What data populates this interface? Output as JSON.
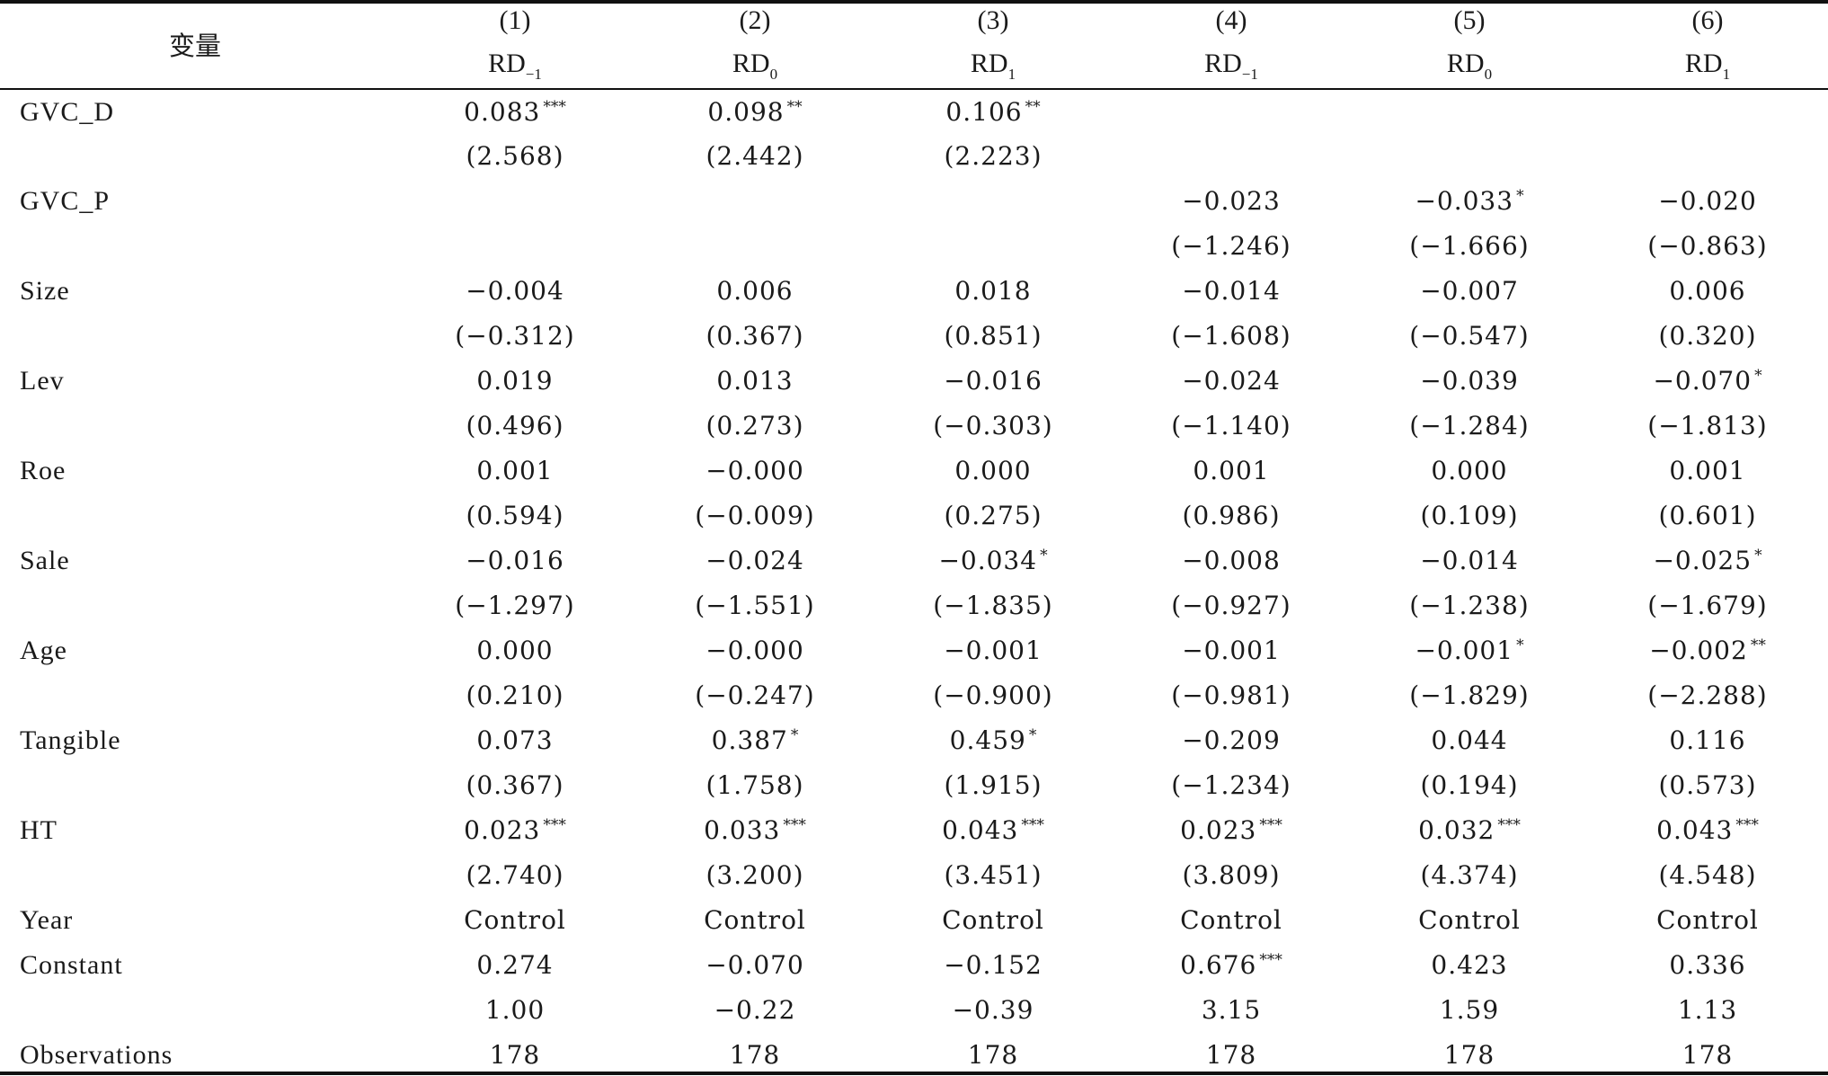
{
  "table": {
    "var_header": "变量",
    "columns": [
      {
        "num": "(1)",
        "dep": "RD",
        "sub": "−1"
      },
      {
        "num": "(2)",
        "dep": "RD",
        "sub": "0"
      },
      {
        "num": "(3)",
        "dep": "RD",
        "sub": "1"
      },
      {
        "num": "(4)",
        "dep": "RD",
        "sub": "−1"
      },
      {
        "num": "(5)",
        "dep": "RD",
        "sub": "0"
      },
      {
        "num": "(6)",
        "dep": "RD",
        "sub": "1"
      }
    ],
    "rows": [
      {
        "label": "GVC_D",
        "coef": [
          {
            "v": "0.083",
            "s": "***"
          },
          {
            "v": "0.098",
            "s": "**"
          },
          {
            "v": "0.106",
            "s": "**"
          },
          null,
          null,
          null
        ],
        "t": [
          "(2.568)",
          "(2.442)",
          "(2.223)",
          null,
          null,
          null
        ]
      },
      {
        "label": "GVC_P",
        "coef": [
          null,
          null,
          null,
          {
            "v": "−0.023",
            "s": ""
          },
          {
            "v": "−0.033",
            "s": "*"
          },
          {
            "v": "−0.020",
            "s": ""
          }
        ],
        "t": [
          null,
          null,
          null,
          "(−1.246)",
          "(−1.666)",
          "(−0.863)"
        ]
      },
      {
        "label": "Size",
        "coef": [
          {
            "v": "−0.004",
            "s": ""
          },
          {
            "v": "0.006",
            "s": ""
          },
          {
            "v": "0.018",
            "s": ""
          },
          {
            "v": "−0.014",
            "s": ""
          },
          {
            "v": "−0.007",
            "s": ""
          },
          {
            "v": "0.006",
            "s": ""
          }
        ],
        "t": [
          "(−0.312)",
          "(0.367)",
          "(0.851)",
          "(−1.608)",
          "(−0.547)",
          "(0.320)"
        ]
      },
      {
        "label": "Lev",
        "coef": [
          {
            "v": "0.019",
            "s": ""
          },
          {
            "v": "0.013",
            "s": ""
          },
          {
            "v": "−0.016",
            "s": ""
          },
          {
            "v": "−0.024",
            "s": ""
          },
          {
            "v": "−0.039",
            "s": ""
          },
          {
            "v": "−0.070",
            "s": "*"
          }
        ],
        "t": [
          "(0.496)",
          "(0.273)",
          "(−0.303)",
          "(−1.140)",
          "(−1.284)",
          "(−1.813)"
        ]
      },
      {
        "label": "Roe",
        "coef": [
          {
            "v": "0.001",
            "s": ""
          },
          {
            "v": "−0.000",
            "s": ""
          },
          {
            "v": "0.000",
            "s": ""
          },
          {
            "v": "0.001",
            "s": ""
          },
          {
            "v": "0.000",
            "s": ""
          },
          {
            "v": "0.001",
            "s": ""
          }
        ],
        "t": [
          "(0.594)",
          "(−0.009)",
          "(0.275)",
          "(0.986)",
          "(0.109)",
          "(0.601)"
        ]
      },
      {
        "label": "Sale",
        "coef": [
          {
            "v": "−0.016",
            "s": ""
          },
          {
            "v": "−0.024",
            "s": ""
          },
          {
            "v": "−0.034",
            "s": "*"
          },
          {
            "v": "−0.008",
            "s": ""
          },
          {
            "v": "−0.014",
            "s": ""
          },
          {
            "v": "−0.025",
            "s": "*"
          }
        ],
        "t": [
          "(−1.297)",
          "(−1.551)",
          "(−1.835)",
          "(−0.927)",
          "(−1.238)",
          "(−1.679)"
        ]
      },
      {
        "label": "Age",
        "coef": [
          {
            "v": "0.000",
            "s": ""
          },
          {
            "v": "−0.000",
            "s": ""
          },
          {
            "v": "−0.001",
            "s": ""
          },
          {
            "v": "−0.001",
            "s": ""
          },
          {
            "v": "−0.001",
            "s": "*"
          },
          {
            "v": "−0.002",
            "s": "**"
          }
        ],
        "t": [
          "(0.210)",
          "(−0.247)",
          "(−0.900)",
          "(−0.981)",
          "(−1.829)",
          "(−2.288)"
        ]
      },
      {
        "label": "Tangible",
        "coef": [
          {
            "v": "0.073",
            "s": ""
          },
          {
            "v": "0.387",
            "s": "*"
          },
          {
            "v": "0.459",
            "s": "*"
          },
          {
            "v": "−0.209",
            "s": ""
          },
          {
            "v": "0.044",
            "s": ""
          },
          {
            "v": "0.116",
            "s": ""
          }
        ],
        "t": [
          "(0.367)",
          "(1.758)",
          "(1.915)",
          "(−1.234)",
          "(0.194)",
          "(0.573)"
        ]
      },
      {
        "label": "HT",
        "coef": [
          {
            "v": "0.023",
            "s": "***"
          },
          {
            "v": "0.033",
            "s": "***"
          },
          {
            "v": "0.043",
            "s": "***"
          },
          {
            "v": "0.023",
            "s": "***"
          },
          {
            "v": "0.032",
            "s": "***"
          },
          {
            "v": "0.043",
            "s": "***"
          }
        ],
        "t": [
          "(2.740)",
          "(3.200)",
          "(3.451)",
          "(3.809)",
          "(4.374)",
          "(4.548)"
        ]
      },
      {
        "label": "Year",
        "coef": [
          {
            "v": "Control",
            "s": ""
          },
          {
            "v": "Control",
            "s": ""
          },
          {
            "v": "Control",
            "s": ""
          },
          {
            "v": "Control",
            "s": ""
          },
          {
            "v": "Control",
            "s": ""
          },
          {
            "v": "Control",
            "s": ""
          }
        ],
        "t": null
      },
      {
        "label": "Constant",
        "coef": [
          {
            "v": "0.274",
            "s": ""
          },
          {
            "v": "−0.070",
            "s": ""
          },
          {
            "v": "−0.152",
            "s": ""
          },
          {
            "v": "0.676",
            "s": "***"
          },
          {
            "v": "0.423",
            "s": ""
          },
          {
            "v": "0.336",
            "s": ""
          }
        ],
        "t": [
          "1.00",
          "−0.22",
          "−0.39",
          "3.15",
          "1.59",
          "1.13"
        ]
      },
      {
        "label": "Observations",
        "coef": [
          {
            "v": "178",
            "s": ""
          },
          {
            "v": "178",
            "s": ""
          },
          {
            "v": "178",
            "s": ""
          },
          {
            "v": "178",
            "s": ""
          },
          {
            "v": "178",
            "s": ""
          },
          {
            "v": "178",
            "s": ""
          }
        ],
        "t": null
      }
    ]
  }
}
